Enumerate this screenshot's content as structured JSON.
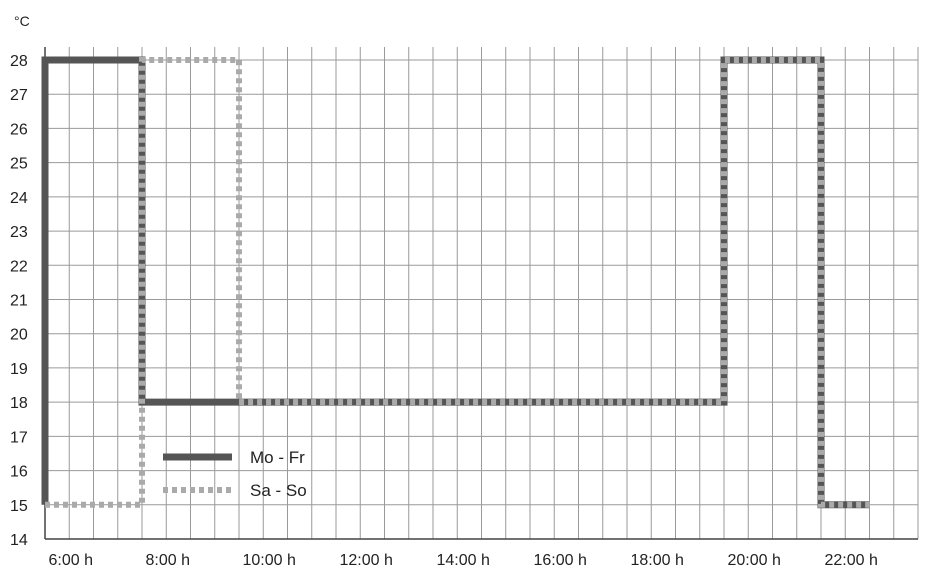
{
  "chart_data": {
    "type": "line",
    "y_unit": "°C",
    "ylim": [
      14,
      28
    ],
    "y_ticks": [
      "14",
      "15",
      "16",
      "17",
      "18",
      "19",
      "20",
      "21",
      "22",
      "23",
      "24",
      "25",
      "26",
      "27",
      "28"
    ],
    "xlim": [
      5,
      23
    ],
    "x_ticks": [
      {
        "value": 6,
        "label": "6:00 h"
      },
      {
        "value": 8,
        "label": "8:00 h"
      },
      {
        "value": 10,
        "label": "10:00 h"
      },
      {
        "value": 12,
        "label": "12:00 h"
      },
      {
        "value": 14,
        "label": "14:00 h"
      },
      {
        "value": 16,
        "label": "16:00 h"
      },
      {
        "value": 18,
        "label": "18:00 h"
      },
      {
        "value": 20,
        "label": "20:00 h"
      },
      {
        "value": 22,
        "label": "22:00 h"
      }
    ],
    "grid": true,
    "legend_position": "bottom-left",
    "series": [
      {
        "name": "Mo - Fr",
        "style": "solid",
        "color": "#555555",
        "points": [
          [
            5,
            15
          ],
          [
            5,
            28
          ],
          [
            7,
            28
          ],
          [
            7,
            18
          ],
          [
            19,
            18
          ],
          [
            19,
            28
          ],
          [
            21,
            28
          ],
          [
            21,
            15
          ],
          [
            22,
            15
          ]
        ]
      },
      {
        "name": "Sa - So",
        "style": "dotted",
        "color": "#aaaaaa",
        "points": [
          [
            5,
            15
          ],
          [
            7,
            15
          ],
          [
            7,
            28
          ],
          [
            9,
            28
          ],
          [
            9,
            18
          ],
          [
            19,
            18
          ],
          [
            19,
            28
          ],
          [
            21,
            28
          ],
          [
            21,
            15
          ],
          [
            22,
            15
          ]
        ]
      }
    ]
  }
}
